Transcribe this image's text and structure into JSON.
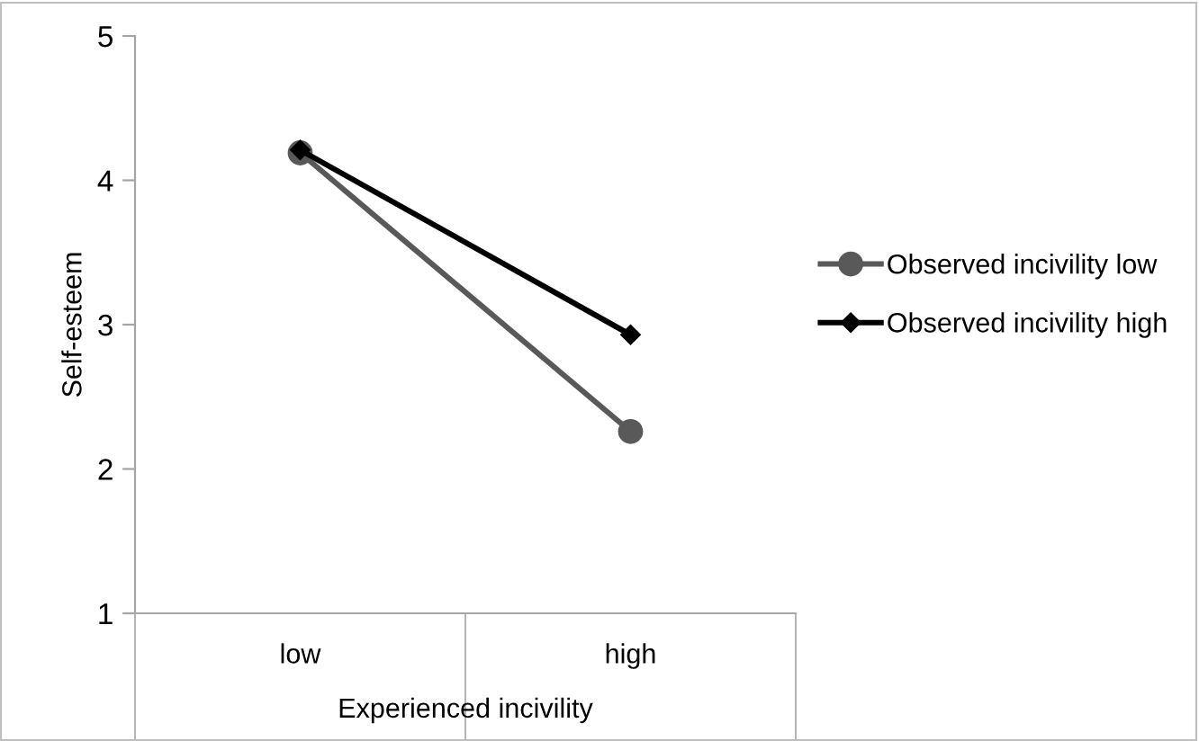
{
  "chart_data": {
    "type": "line",
    "xlabel": "Experienced incivility",
    "ylabel": "Self-esteem",
    "categories": [
      "low",
      "high"
    ],
    "series": [
      {
        "name": "Observed incivility low",
        "color": "#595959",
        "marker": "circle",
        "values": [
          4.19,
          2.26
        ]
      },
      {
        "name": "Observed incivility high",
        "color": "#000000",
        "marker": "diamond",
        "values": [
          4.21,
          2.93
        ]
      }
    ],
    "ylim": [
      1,
      5
    ],
    "yticks": [
      1,
      2,
      3,
      4,
      5
    ],
    "grid": false,
    "legend": "right",
    "line_style": "solid"
  }
}
